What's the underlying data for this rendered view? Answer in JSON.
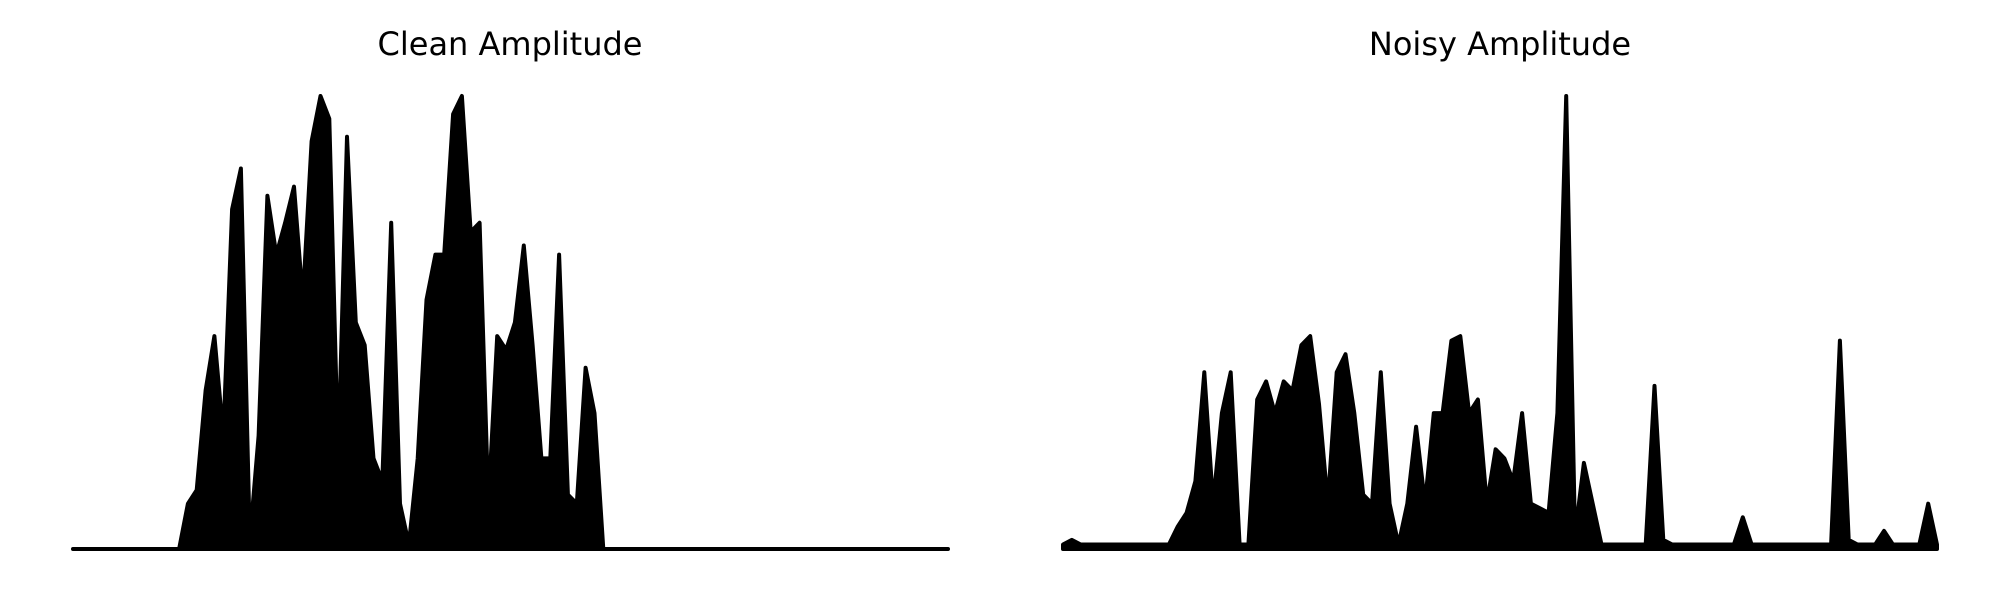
{
  "chart_data": [
    {
      "type": "area",
      "title": "Clean Amplitude",
      "color": "#000000",
      "values": [
        0,
        0,
        0,
        0,
        0,
        0,
        0,
        0,
        0,
        0,
        0,
        0,
        0,
        0.1,
        0.13,
        0.35,
        0.47,
        0.25,
        0.75,
        0.84,
        0.02,
        0.25,
        0.78,
        0.65,
        0.72,
        0.8,
        0.55,
        0.9,
        1.0,
        0.95,
        0.2,
        0.91,
        0.5,
        0.45,
        0.2,
        0.15,
        0.72,
        0.1,
        0.01,
        0.2,
        0.55,
        0.65,
        0.65,
        0.96,
        1.0,
        0.7,
        0.72,
        0.1,
        0.47,
        0.44,
        0.5,
        0.67,
        0.45,
        0.2,
        0.2,
        0.65,
        0.12,
        0.1,
        0.4,
        0.3,
        0,
        0,
        0,
        0,
        0,
        0,
        0,
        0,
        0,
        0,
        0,
        0,
        0,
        0,
        0,
        0,
        0,
        0,
        0,
        0,
        0,
        0,
        0,
        0,
        0,
        0,
        0,
        0,
        0,
        0,
        0,
        0,
        0,
        0,
        0,
        0,
        0,
        0,
        0,
        0
      ]
    },
    {
      "type": "area",
      "title": "Noisy Amplitude",
      "color": "#000000",
      "values": [
        0.01,
        0.02,
        0.01,
        0.01,
        0.01,
        0.01,
        0.01,
        0.01,
        0.01,
        0.01,
        0.01,
        0.01,
        0.01,
        0.05,
        0.08,
        0.15,
        0.39,
        0.1,
        0.3,
        0.39,
        0.01,
        0.01,
        0.33,
        0.37,
        0.3,
        0.37,
        0.35,
        0.45,
        0.47,
        0.32,
        0.1,
        0.39,
        0.43,
        0.3,
        0.12,
        0.1,
        0.39,
        0.1,
        0.01,
        0.1,
        0.27,
        0.1,
        0.3,
        0.3,
        0.46,
        0.47,
        0.3,
        0.33,
        0.1,
        0.22,
        0.2,
        0.15,
        0.3,
        0.1,
        0.09,
        0.08,
        0.3,
        1.0,
        0.03,
        0.19,
        0.1,
        0.01,
        0.01,
        0.01,
        0.01,
        0.01,
        0.01,
        0.36,
        0.02,
        0.01,
        0.01,
        0.01,
        0.01,
        0.01,
        0.01,
        0.01,
        0.01,
        0.07,
        0.01,
        0.01,
        0.01,
        0.01,
        0.01,
        0.01,
        0.01,
        0.01,
        0.01,
        0.01,
        0.46,
        0.02,
        0.01,
        0.01,
        0.01,
        0.04,
        0.01,
        0.01,
        0.01,
        0.01,
        0.1,
        0.01
      ]
    }
  ]
}
